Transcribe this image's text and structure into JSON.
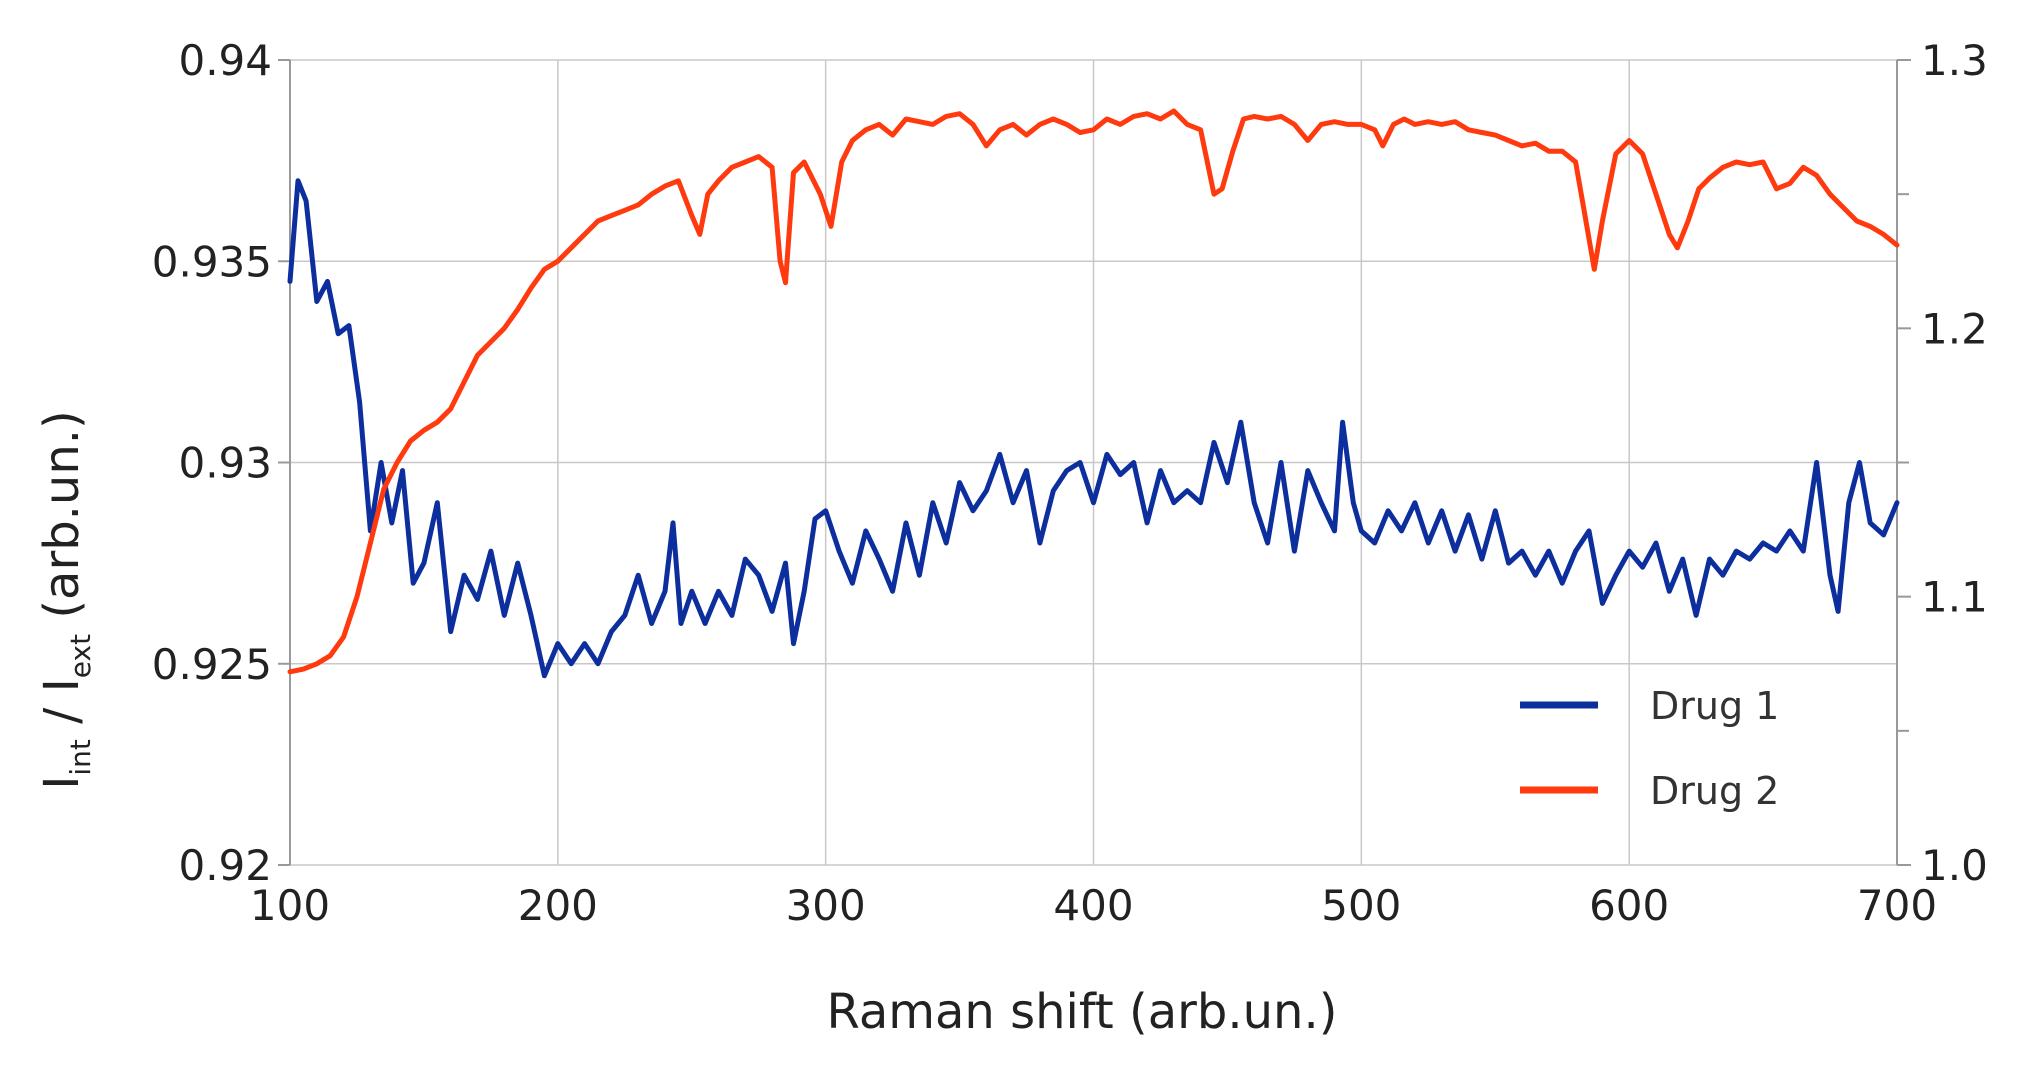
{
  "chart_data": {
    "type": "line",
    "xlabel": "Raman shift (arb.un.)",
    "ylabel": {
      "base1": "I",
      "sub1": "int",
      "sep": " / ",
      "base2": "I",
      "sub2": "ext",
      "rest": " (arb.un.)"
    },
    "y2label": "",
    "xlim": [
      100,
      700
    ],
    "ylim": [
      0.92,
      0.94
    ],
    "y2lim": [
      1.0,
      1.3
    ],
    "x_ticks": [
      "100",
      "200",
      "300",
      "400",
      "500",
      "600",
      "700"
    ],
    "x_tick_values": [
      100,
      200,
      300,
      400,
      500,
      600,
      700
    ],
    "y_ticks": [
      "0.92",
      "0.925",
      "0.93",
      "0.935",
      "0.94"
    ],
    "y_tick_values": [
      0.92,
      0.925,
      0.93,
      0.935,
      0.94
    ],
    "y2_ticks": [
      "1.0",
      "1.1",
      "1.2",
      "1.3"
    ],
    "y2_tick_values": [
      1.0,
      1.1,
      1.2,
      1.3
    ],
    "y2_minor_ticks": [
      1.05,
      1.15,
      1.25
    ],
    "grid": true,
    "legend_position": "bottom-right",
    "series": [
      {
        "name": "Drug 1",
        "axis": "left",
        "color": "#0d2f9e",
        "x": [
          100,
          103,
          106,
          110,
          114,
          118,
          122,
          126,
          130,
          134,
          138,
          142,
          146,
          150,
          155,
          160,
          165,
          170,
          175,
          180,
          185,
          190,
          195,
          200,
          205,
          210,
          215,
          220,
          225,
          230,
          235,
          240,
          243,
          246,
          250,
          255,
          260,
          265,
          270,
          275,
          280,
          285,
          288,
          292,
          296,
          300,
          305,
          310,
          315,
          320,
          325,
          330,
          335,
          340,
          345,
          350,
          355,
          360,
          365,
          370,
          375,
          380,
          385,
          390,
          395,
          400,
          405,
          410,
          415,
          420,
          425,
          430,
          435,
          440,
          445,
          450,
          455,
          460,
          465,
          470,
          475,
          480,
          485,
          490,
          493,
          497,
          500,
          505,
          510,
          515,
          520,
          525,
          530,
          535,
          540,
          545,
          550,
          555,
          560,
          565,
          570,
          575,
          580,
          585,
          590,
          595,
          600,
          605,
          610,
          615,
          620,
          625,
          630,
          635,
          640,
          645,
          650,
          655,
          660,
          665,
          670,
          675,
          678,
          682,
          686,
          690,
          695,
          700
        ],
        "values": [
          0.9345,
          0.937,
          0.9365,
          0.934,
          0.9345,
          0.9332,
          0.9334,
          0.9315,
          0.9283,
          0.93,
          0.9285,
          0.9298,
          0.927,
          0.9275,
          0.929,
          0.9258,
          0.9272,
          0.9266,
          0.9278,
          0.9262,
          0.9275,
          0.9262,
          0.9247,
          0.9255,
          0.925,
          0.9255,
          0.925,
          0.9258,
          0.9262,
          0.9272,
          0.926,
          0.9268,
          0.9285,
          0.926,
          0.9268,
          0.926,
          0.9268,
          0.9262,
          0.9276,
          0.9272,
          0.9263,
          0.9275,
          0.9255,
          0.9268,
          0.9286,
          0.9288,
          0.9278,
          0.927,
          0.9283,
          0.9276,
          0.9268,
          0.9285,
          0.9272,
          0.929,
          0.928,
          0.9295,
          0.9288,
          0.9293,
          0.9302,
          0.929,
          0.9298,
          0.928,
          0.9293,
          0.9298,
          0.93,
          0.929,
          0.9302,
          0.9297,
          0.93,
          0.9285,
          0.9298,
          0.929,
          0.9293,
          0.929,
          0.9305,
          0.9295,
          0.931,
          0.929,
          0.928,
          0.93,
          0.9278,
          0.9298,
          0.929,
          0.9283,
          0.931,
          0.929,
          0.9283,
          0.928,
          0.9288,
          0.9283,
          0.929,
          0.928,
          0.9288,
          0.9278,
          0.9287,
          0.9276,
          0.9288,
          0.9275,
          0.9278,
          0.9272,
          0.9278,
          0.927,
          0.9278,
          0.9283,
          0.9265,
          0.9272,
          0.9278,
          0.9274,
          0.928,
          0.9268,
          0.9276,
          0.9262,
          0.9276,
          0.9272,
          0.9278,
          0.9276,
          0.928,
          0.9278,
          0.9283,
          0.9278,
          0.93,
          0.9272,
          0.9263,
          0.929,
          0.93,
          0.9285,
          0.9282,
          0.929
        ]
      },
      {
        "name": "Drug 2",
        "axis": "right",
        "color": "#ff3a0f",
        "x": [
          100,
          105,
          110,
          115,
          120,
          125,
          130,
          135,
          140,
          145,
          150,
          155,
          160,
          165,
          170,
          175,
          180,
          185,
          190,
          195,
          200,
          205,
          210,
          215,
          220,
          225,
          230,
          235,
          240,
          245,
          250,
          253,
          256,
          260,
          265,
          270,
          275,
          280,
          283,
          285,
          288,
          292,
          298,
          302,
          306,
          310,
          315,
          320,
          325,
          330,
          335,
          340,
          345,
          350,
          355,
          360,
          365,
          370,
          375,
          380,
          385,
          390,
          395,
          400,
          405,
          410,
          415,
          420,
          425,
          430,
          435,
          440,
          445,
          448,
          452,
          456,
          460,
          465,
          470,
          475,
          480,
          485,
          490,
          495,
          500,
          505,
          508,
          512,
          516,
          520,
          525,
          530,
          535,
          540,
          545,
          550,
          555,
          560,
          565,
          570,
          575,
          580,
          583,
          587,
          590,
          595,
          600,
          605,
          610,
          615,
          618,
          622,
          626,
          630,
          635,
          640,
          645,
          650,
          655,
          660,
          665,
          670,
          675,
          680,
          685,
          690,
          695,
          700
        ],
        "values": [
          1.072,
          1.073,
          1.075,
          1.078,
          1.085,
          1.1,
          1.12,
          1.14,
          1.15,
          1.158,
          1.162,
          1.165,
          1.17,
          1.18,
          1.19,
          1.195,
          1.2,
          1.207,
          1.215,
          1.222,
          1.225,
          1.23,
          1.235,
          1.24,
          1.242,
          1.244,
          1.246,
          1.25,
          1.253,
          1.255,
          1.242,
          1.235,
          1.25,
          1.255,
          1.26,
          1.262,
          1.264,
          1.26,
          1.225,
          1.217,
          1.258,
          1.262,
          1.25,
          1.238,
          1.262,
          1.27,
          1.274,
          1.276,
          1.272,
          1.278,
          1.277,
          1.276,
          1.279,
          1.28,
          1.276,
          1.268,
          1.274,
          1.276,
          1.272,
          1.276,
          1.278,
          1.276,
          1.273,
          1.274,
          1.278,
          1.276,
          1.279,
          1.28,
          1.278,
          1.281,
          1.276,
          1.274,
          1.25,
          1.252,
          1.266,
          1.278,
          1.279,
          1.278,
          1.279,
          1.276,
          1.27,
          1.276,
          1.277,
          1.276,
          1.276,
          1.274,
          1.268,
          1.276,
          1.278,
          1.276,
          1.277,
          1.276,
          1.277,
          1.274,
          1.273,
          1.272,
          1.27,
          1.268,
          1.269,
          1.266,
          1.266,
          1.262,
          1.245,
          1.222,
          1.24,
          1.265,
          1.27,
          1.265,
          1.25,
          1.235,
          1.23,
          1.24,
          1.252,
          1.256,
          1.26,
          1.262,
          1.261,
          1.262,
          1.252,
          1.254,
          1.26,
          1.257,
          1.25,
          1.245,
          1.24,
          1.238,
          1.235,
          1.231
        ]
      }
    ]
  }
}
